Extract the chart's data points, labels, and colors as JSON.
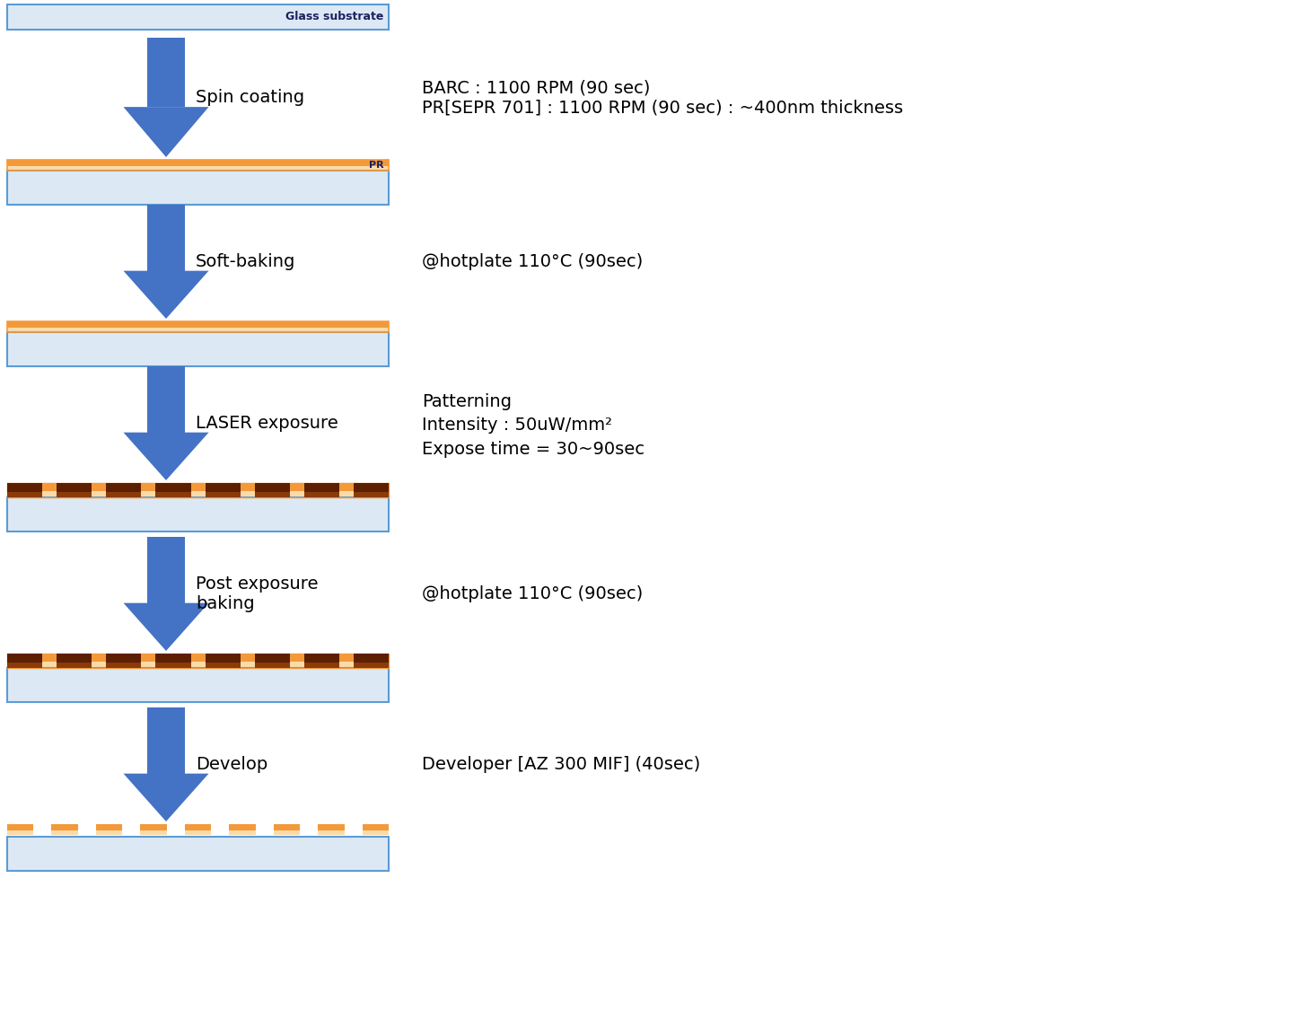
{
  "bg_color": "#ffffff",
  "arrow_color": "#4472C4",
  "glass_fill": "#dce9f5",
  "glass_edge": "#5B9BD5",
  "pr_orange": "#F4993A",
  "pr_light": "#FADBA8",
  "dark_brown": "#5C2000",
  "brown_mid": "#8B3A0A",
  "steps": [
    {
      "label_left": "Spin coating",
      "label_right_lines": [
        "BARC : 1100 RPM (90 sec)",
        "PR[SEPR 701] : 1100 RPM (90 sec) : ~400nm thickness"
      ],
      "has_pr_label": true,
      "pr_label": "PR",
      "substrate_type": "solid_pr"
    },
    {
      "label_left": "Soft-baking",
      "label_right_lines": [
        "@hotplate 110°C (90sec)"
      ],
      "has_pr_label": false,
      "substrate_type": "solid_pr"
    },
    {
      "label_left": "LASER exposure",
      "label_right_lines": [
        "Patterning",
        "Intensity : 50uW/mm²",
        "Expose time = 30~90sec"
      ],
      "has_pr_label": false,
      "substrate_type": "patterned_pr"
    },
    {
      "label_left": "Post exposure\nbaking",
      "label_right_lines": [
        "@hotplate 110°C (90sec)"
      ],
      "has_pr_label": false,
      "substrate_type": "patterned_pr"
    },
    {
      "label_left": "Develop",
      "label_right_lines": [
        "Developer [AZ 300 MIF] (40sec)"
      ],
      "has_pr_label": false,
      "substrate_type": "developed_pr"
    }
  ],
  "glass_substrate_label": "Glass substrate",
  "fig_width": 14.36,
  "fig_height": 11.25
}
